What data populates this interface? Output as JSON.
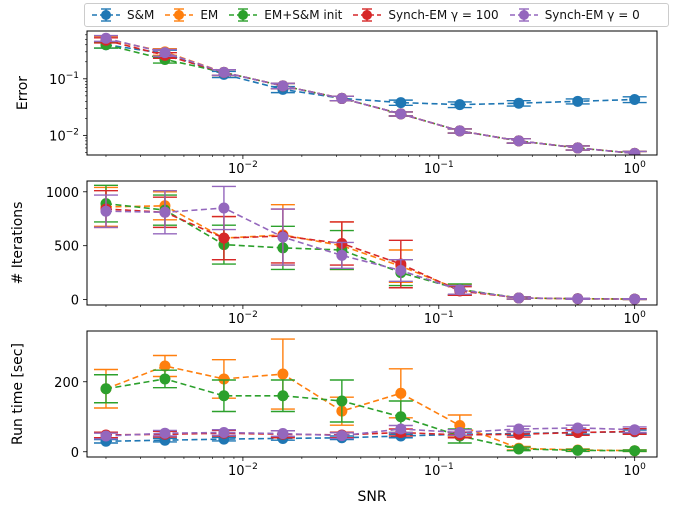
{
  "legend": {
    "items": [
      {
        "name": "S&M",
        "color": "#1f77b4"
      },
      {
        "name": "EM",
        "color": "#ff7f0e"
      },
      {
        "name": "EM+S&M init",
        "color": "#2ca02c"
      },
      {
        "name": "Synch-EM γ = 100",
        "color": "#d62728"
      },
      {
        "name": "Synch-EM γ = 0",
        "color": "#9467bd"
      }
    ]
  },
  "chart_data": [
    {
      "type": "line",
      "ylabel": "Error",
      "yscale": "log",
      "xscale": "log",
      "xlim": [
        0.0016,
        1.3
      ],
      "ylim": [
        0.0045,
        0.7
      ],
      "x": [
        0.002,
        0.004,
        0.008,
        0.016,
        0.032,
        0.064,
        0.128,
        0.256,
        0.512,
        1.0
      ],
      "x_tick_labels": [
        "10^−2",
        "10^−1",
        "10^0"
      ],
      "y_tick_labels": [
        "10^−2",
        "10^−1"
      ],
      "series": [
        {
          "name": "S&M",
          "color": "#1f77b4",
          "values": [
            0.4,
            0.28,
            0.12,
            0.065,
            0.045,
            0.038,
            0.035,
            0.037,
            0.04,
            0.043
          ],
          "err": [
            0.05,
            0.04,
            0.015,
            0.008,
            0.004,
            0.004,
            0.004,
            0.004,
            0.004,
            0.005
          ]
        },
        {
          "name": "EM",
          "color": "#ff7f0e",
          "values": [
            0.5,
            0.3,
            0.13,
            0.075,
            0.045,
            0.024,
            0.012,
            0.008,
            0.006,
            0.0048
          ],
          "err": [
            0.06,
            0.04,
            0.015,
            0.008,
            0.004,
            0.002,
            0.001,
            0.0007,
            0.0005,
            0.0004
          ]
        },
        {
          "name": "EM+S&M init",
          "color": "#2ca02c",
          "values": [
            0.4,
            0.22,
            0.13,
            0.075,
            0.045,
            0.024,
            0.012,
            0.008,
            0.006,
            0.0048
          ],
          "err": [
            0.05,
            0.03,
            0.015,
            0.008,
            0.004,
            0.002,
            0.001,
            0.0007,
            0.0005,
            0.0004
          ]
        },
        {
          "name": "Synch-EM γ = 100",
          "color": "#d62728",
          "values": [
            0.48,
            0.26,
            0.13,
            0.075,
            0.045,
            0.024,
            0.012,
            0.008,
            0.006,
            0.0048
          ],
          "err": [
            0.05,
            0.03,
            0.015,
            0.008,
            0.004,
            0.002,
            0.001,
            0.0007,
            0.0005,
            0.0004
          ]
        },
        {
          "name": "Synch-EM γ = 0",
          "color": "#9467bd",
          "values": [
            0.52,
            0.29,
            0.13,
            0.075,
            0.045,
            0.024,
            0.012,
            0.008,
            0.006,
            0.0048
          ],
          "err": [
            0.06,
            0.04,
            0.015,
            0.008,
            0.004,
            0.002,
            0.001,
            0.0007,
            0.0005,
            0.0004
          ]
        }
      ]
    },
    {
      "type": "line",
      "ylabel": "# Iterations",
      "yscale": "linear",
      "xscale": "log",
      "xlim": [
        0.0016,
        1.3
      ],
      "ylim": [
        -50,
        1100
      ],
      "y_ticks": [
        0,
        500,
        1000
      ],
      "x": [
        0.002,
        0.004,
        0.008,
        0.016,
        0.032,
        0.064,
        0.128,
        0.256,
        0.512,
        1.0
      ],
      "x_tick_labels": [
        "10^−2",
        "10^−1",
        "10^0"
      ],
      "series": [
        {
          "name": "EM",
          "color": "#ff7f0e",
          "values": [
            860,
            870,
            570,
            600,
            500,
            310,
            90,
            15,
            8,
            5
          ],
          "err": [
            180,
            130,
            200,
            280,
            220,
            150,
            50,
            10,
            5,
            3
          ]
        },
        {
          "name": "EM+S&M init",
          "color": "#2ca02c",
          "values": [
            890,
            830,
            510,
            480,
            460,
            250,
            95,
            15,
            8,
            5
          ],
          "err": [
            170,
            140,
            180,
            200,
            180,
            120,
            50,
            10,
            5,
            3
          ]
        },
        {
          "name": "Synch-EM γ = 100",
          "color": "#d62728",
          "values": [
            840,
            810,
            570,
            590,
            520,
            330,
            80,
            15,
            8,
            5
          ],
          "err": [
            170,
            140,
            200,
            250,
            200,
            220,
            40,
            10,
            5,
            3
          ]
        },
        {
          "name": "Synch-EM γ = 0",
          "color": "#9467bd",
          "values": [
            820,
            810,
            850,
            580,
            410,
            270,
            90,
            15,
            8,
            5
          ],
          "err": [
            150,
            200,
            200,
            260,
            120,
            100,
            40,
            10,
            5,
            3
          ]
        }
      ]
    },
    {
      "type": "line",
      "ylabel": "Run time [sec]",
      "xlabel": "SNR",
      "yscale": "linear",
      "xscale": "log",
      "xlim": [
        0.0016,
        1.3
      ],
      "ylim": [
        -15,
        345
      ],
      "y_ticks": [
        0,
        200
      ],
      "x": [
        0.002,
        0.004,
        0.008,
        0.016,
        0.032,
        0.064,
        0.128,
        0.256,
        0.512,
        1.0
      ],
      "x_tick_labels": [
        "10^−2",
        "10^−1",
        "10^0"
      ],
      "series": [
        {
          "name": "S&M",
          "color": "#1f77b4",
          "values": [
            30,
            33,
            36,
            38,
            40,
            45,
            50,
            52,
            55,
            57
          ],
          "err": [
            5,
            5,
            5,
            5,
            5,
            5,
            5,
            5,
            5,
            5
          ]
        },
        {
          "name": "EM",
          "color": "#ff7f0e",
          "values": [
            180,
            245,
            208,
            222,
            116,
            167,
            75,
            10,
            5,
            3
          ],
          "err": [
            55,
            30,
            55,
            100,
            40,
            70,
            30,
            5,
            3,
            2
          ]
        },
        {
          "name": "EM+S&M init",
          "color": "#2ca02c",
          "values": [
            180,
            208,
            160,
            160,
            145,
            100,
            45,
            8,
            4,
            3
          ],
          "err": [
            40,
            25,
            45,
            45,
            60,
            45,
            20,
            5,
            3,
            2
          ]
        },
        {
          "name": "Synch-EM γ = 100",
          "color": "#d62728",
          "values": [
            48,
            50,
            53,
            50,
            48,
            55,
            48,
            50,
            55,
            58
          ],
          "err": [
            8,
            8,
            8,
            10,
            8,
            10,
            8,
            8,
            8,
            8
          ]
        },
        {
          "name": "Synch-EM γ = 0",
          "color": "#9467bd",
          "values": [
            45,
            53,
            55,
            52,
            46,
            65,
            55,
            65,
            68,
            63
          ],
          "err": [
            8,
            8,
            8,
            8,
            8,
            10,
            8,
            8,
            8,
            8
          ]
        }
      ]
    }
  ]
}
